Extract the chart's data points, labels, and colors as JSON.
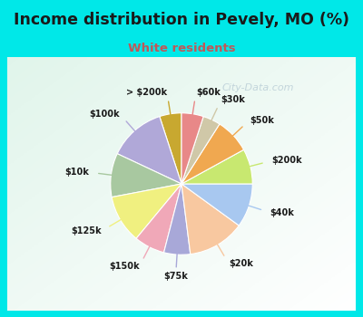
{
  "title": "Income distribution in Pevely, MO (%)",
  "subtitle": "White residents",
  "labels": [
    "> $200k",
    "$100k",
    "$10k",
    "$125k",
    "$150k",
    "$75k",
    "$20k",
    "$40k",
    "$200k",
    "$50k",
    "$30k",
    "$60k"
  ],
  "sizes": [
    5,
    13,
    10,
    11,
    7,
    6,
    13,
    10,
    8,
    8,
    4,
    5
  ],
  "colors": [
    "#c8a830",
    "#b0a8d8",
    "#a8c8a0",
    "#f0f080",
    "#f0a8b8",
    "#a8a8d8",
    "#f8c8a0",
    "#a8c8f0",
    "#c8e870",
    "#f0a850",
    "#d0c8a8",
    "#e88888"
  ],
  "bg_top": "#00e8e8",
  "bg_chart_color": "#d8ede4",
  "title_color": "#1a1a1a",
  "subtitle_color": "#c05858",
  "label_color": "#1a1a1a",
  "watermark": "City-Data.com",
  "startangle": 90,
  "title_fontsize": 12.5,
  "subtitle_fontsize": 9.5,
  "label_fontsize": 7.0
}
